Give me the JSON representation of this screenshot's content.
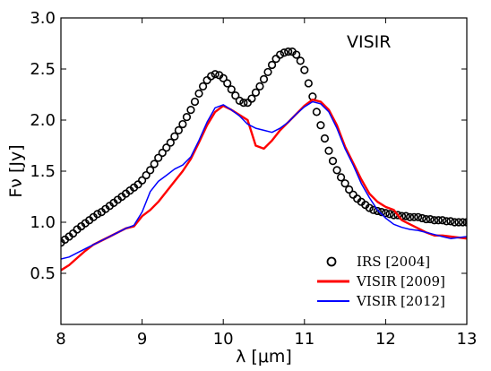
{
  "chart_data": {
    "type": "line",
    "title": "",
    "annotation": "VISIR",
    "xlabel": "λ [μm]",
    "ylabel": "Fν [Jy]",
    "xlim": [
      8,
      13
    ],
    "ylim": [
      0,
      3.0
    ],
    "xticks": [
      8,
      9,
      10,
      11,
      12,
      13
    ],
    "xtick_labels": [
      "8",
      "9",
      "10",
      "11",
      "12",
      "13"
    ],
    "yticks": [
      0.5,
      1.0,
      1.5,
      2.0,
      2.5,
      3.0
    ],
    "ytick_labels": [
      "0.5",
      "1.0",
      "1.5",
      "2.0",
      "2.5",
      "3.0"
    ],
    "grid": false,
    "legend_position": "bottom-right",
    "series": [
      {
        "name": "IRS    [2004]",
        "style": "open-circles",
        "color": "#000000",
        "x": [
          8.0,
          8.05,
          8.1,
          8.15,
          8.2,
          8.25,
          8.3,
          8.35,
          8.4,
          8.45,
          8.5,
          8.55,
          8.6,
          8.65,
          8.7,
          8.75,
          8.8,
          8.85,
          8.9,
          8.95,
          9.0,
          9.05,
          9.1,
          9.15,
          9.2,
          9.25,
          9.3,
          9.35,
          9.4,
          9.45,
          9.5,
          9.55,
          9.6,
          9.65,
          9.7,
          9.75,
          9.8,
          9.85,
          9.9,
          9.95,
          10.0,
          10.05,
          10.1,
          10.15,
          10.2,
          10.25,
          10.3,
          10.35,
          10.4,
          10.45,
          10.5,
          10.55,
          10.6,
          10.65,
          10.7,
          10.75,
          10.8,
          10.85,
          10.9,
          10.95,
          11.0,
          11.05,
          11.1,
          11.15,
          11.2,
          11.25,
          11.3,
          11.35,
          11.4,
          11.45,
          11.5,
          11.55,
          11.6,
          11.65,
          11.7,
          11.75,
          11.8,
          11.85,
          11.9,
          11.95,
          12.0,
          12.05,
          12.1,
          12.15,
          12.2,
          12.25,
          12.3,
          12.35,
          12.4,
          12.45,
          12.5,
          12.55,
          12.6,
          12.65,
          12.7,
          12.75,
          12.8,
          12.85,
          12.9,
          12.95,
          13.0
        ],
        "values": [
          0.8,
          0.83,
          0.86,
          0.89,
          0.93,
          0.96,
          0.99,
          1.02,
          1.05,
          1.08,
          1.1,
          1.13,
          1.16,
          1.19,
          1.22,
          1.25,
          1.28,
          1.31,
          1.34,
          1.37,
          1.41,
          1.46,
          1.51,
          1.57,
          1.63,
          1.68,
          1.73,
          1.78,
          1.84,
          1.9,
          1.96,
          2.03,
          2.1,
          2.18,
          2.26,
          2.33,
          2.39,
          2.43,
          2.45,
          2.44,
          2.41,
          2.36,
          2.3,
          2.24,
          2.19,
          2.17,
          2.17,
          2.21,
          2.27,
          2.33,
          2.4,
          2.47,
          2.54,
          2.6,
          2.64,
          2.66,
          2.67,
          2.67,
          2.64,
          2.58,
          2.49,
          2.36,
          2.23,
          2.08,
          1.95,
          1.82,
          1.7,
          1.6,
          1.51,
          1.44,
          1.38,
          1.32,
          1.27,
          1.23,
          1.2,
          1.17,
          1.14,
          1.12,
          1.11,
          1.1,
          1.09,
          1.08,
          1.07,
          1.07,
          1.06,
          1.06,
          1.05,
          1.05,
          1.05,
          1.04,
          1.03,
          1.03,
          1.02,
          1.02,
          1.02,
          1.01,
          1.01,
          1.0,
          1.0,
          1.0,
          1.0
        ]
      },
      {
        "name": "VISIR [2009]",
        "style": "line",
        "color": "#ff0000",
        "x": [
          8.0,
          8.1,
          8.2,
          8.3,
          8.4,
          8.5,
          8.6,
          8.7,
          8.8,
          8.9,
          9.0,
          9.1,
          9.2,
          9.3,
          9.4,
          9.5,
          9.6,
          9.7,
          9.8,
          9.9,
          10.0,
          10.1,
          10.2,
          10.3,
          10.4,
          10.5,
          10.6,
          10.7,
          10.8,
          10.9,
          11.0,
          11.1,
          11.2,
          11.3,
          11.4,
          11.5,
          11.6,
          11.7,
          11.8,
          11.9,
          12.0,
          12.1,
          12.2,
          12.3,
          12.4,
          12.5,
          12.6,
          12.7,
          12.8,
          12.9,
          13.0
        ],
        "values": [
          0.53,
          0.58,
          0.65,
          0.72,
          0.78,
          0.82,
          0.86,
          0.9,
          0.94,
          0.96,
          1.06,
          1.12,
          1.2,
          1.3,
          1.4,
          1.5,
          1.62,
          1.78,
          1.95,
          2.08,
          2.14,
          2.1,
          2.05,
          2.0,
          1.75,
          1.72,
          1.8,
          1.9,
          1.98,
          2.06,
          2.14,
          2.2,
          2.18,
          2.1,
          1.95,
          1.74,
          1.58,
          1.42,
          1.28,
          1.2,
          1.15,
          1.12,
          1.02,
          0.98,
          0.94,
          0.9,
          0.87,
          0.87,
          0.86,
          0.85,
          0.84
        ]
      },
      {
        "name": "VISIR [2012]",
        "style": "line",
        "color": "#0000ff",
        "x": [
          8.0,
          8.1,
          8.2,
          8.3,
          8.4,
          8.5,
          8.6,
          8.7,
          8.8,
          8.9,
          9.0,
          9.1,
          9.2,
          9.3,
          9.4,
          9.5,
          9.6,
          9.7,
          9.8,
          9.9,
          10.0,
          10.1,
          10.2,
          10.3,
          10.4,
          10.5,
          10.6,
          10.7,
          10.8,
          10.9,
          11.0,
          11.1,
          11.2,
          11.3,
          11.4,
          11.5,
          11.6,
          11.7,
          11.8,
          11.9,
          12.0,
          12.1,
          12.2,
          12.3,
          12.4,
          12.5,
          12.6,
          12.7,
          12.8,
          12.9,
          13.0
        ],
        "values": [
          0.64,
          0.66,
          0.7,
          0.74,
          0.78,
          0.82,
          0.86,
          0.9,
          0.94,
          0.97,
          1.1,
          1.3,
          1.4,
          1.46,
          1.52,
          1.56,
          1.64,
          1.8,
          1.98,
          2.12,
          2.15,
          2.1,
          2.04,
          1.96,
          1.92,
          1.9,
          1.88,
          1.92,
          1.98,
          2.06,
          2.13,
          2.18,
          2.16,
          2.08,
          1.92,
          1.72,
          1.56,
          1.38,
          1.24,
          1.12,
          1.04,
          0.98,
          0.95,
          0.93,
          0.92,
          0.9,
          0.88,
          0.86,
          0.84,
          0.85,
          0.86
        ]
      }
    ]
  }
}
